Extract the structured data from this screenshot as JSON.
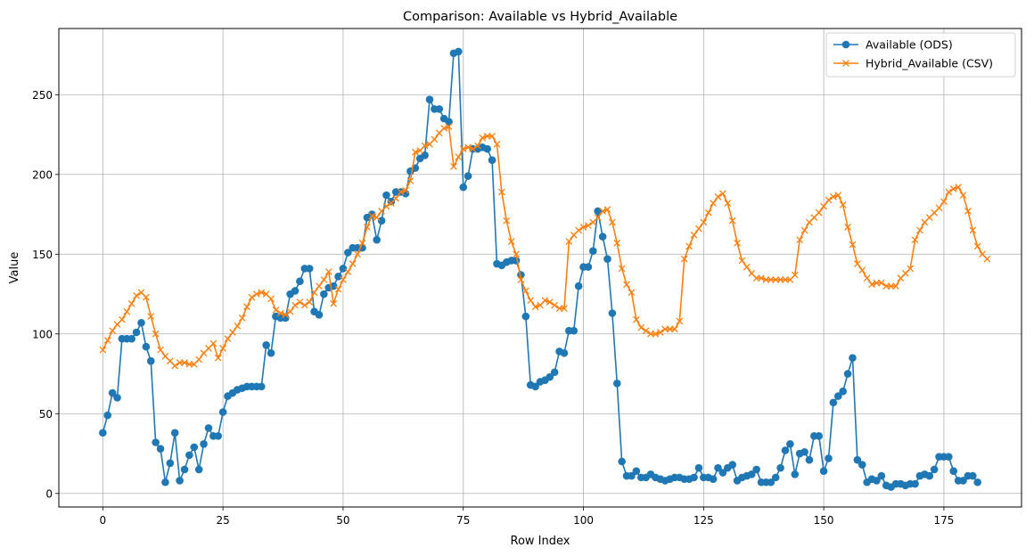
{
  "chart_data": {
    "type": "line",
    "title": "Comparison: Available vs Hybrid_Available",
    "xlabel": "Row Index",
    "ylabel": "Value",
    "xlim": [
      -9.15,
      191.15
    ],
    "ylim": [
      -8.5,
      291.5
    ],
    "xticks": [
      0,
      25,
      50,
      75,
      100,
      125,
      150,
      175
    ],
    "yticks": [
      0,
      50,
      100,
      150,
      200,
      250
    ],
    "grid": true,
    "legend_position": "top-right",
    "series": [
      {
        "name": "Available (ODS)",
        "color": "#1f77b4",
        "marker": "circle",
        "values": [
          38,
          49,
          63,
          60,
          97,
          97,
          97,
          101,
          107,
          92,
          83,
          32,
          28,
          7,
          19,
          38,
          8,
          15,
          24,
          29,
          15,
          31,
          41,
          36,
          36,
          51,
          61,
          63,
          65,
          66,
          67,
          67,
          67,
          67,
          93,
          88,
          111,
          110,
          110,
          125,
          127,
          133,
          141,
          141,
          114,
          112,
          125,
          129,
          130,
          136,
          141,
          151,
          154,
          154,
          154,
          173,
          175,
          159,
          171,
          187,
          183,
          189,
          189,
          188,
          202,
          204,
          210,
          212,
          247,
          241,
          241,
          235,
          233,
          276,
          277,
          192,
          199,
          216,
          216,
          217,
          216,
          209,
          144,
          143,
          145,
          146,
          146,
          137,
          111,
          68,
          67,
          70,
          71,
          73,
          76,
          89,
          88,
          102,
          102,
          130,
          142,
          142,
          152,
          177,
          161,
          147,
          113,
          69,
          20,
          11,
          11,
          14,
          10,
          10,
          12,
          10,
          9,
          8,
          9,
          10,
          10,
          9,
          9,
          10,
          16,
          10,
          10,
          9,
          16,
          13,
          16,
          18,
          8,
          10,
          11,
          12,
          15,
          7,
          7,
          7,
          10,
          16,
          27,
          31,
          12,
          25,
          26,
          21,
          36,
          36,
          14,
          22,
          57,
          61,
          64,
          75,
          85,
          21,
          18,
          7,
          9,
          8,
          11,
          5,
          4,
          6,
          6,
          5,
          6,
          6,
          11,
          12,
          11,
          15,
          23,
          23,
          23,
          14,
          8,
          8,
          11,
          11,
          7
        ]
      },
      {
        "name": "Hybrid_Available (CSV)",
        "color": "#ff7f0e",
        "marker": "x",
        "values": [
          90,
          96,
          102,
          106,
          109,
          114,
          119,
          124,
          126,
          123,
          111,
          100,
          90,
          86,
          83,
          80,
          82,
          82,
          81,
          81,
          84,
          88,
          91,
          94,
          85,
          91,
          97,
          101,
          105,
          110,
          117,
          123,
          125,
          126,
          125,
          122,
          115,
          113,
          112,
          114,
          118,
          120,
          118,
          120,
          126,
          130,
          134,
          139,
          119,
          128,
          134,
          139,
          144,
          150,
          157,
          167,
          174,
          173,
          177,
          180,
          182,
          185,
          189,
          190,
          196,
          214,
          215,
          218,
          219,
          222,
          226,
          229,
          230,
          205,
          211,
          216,
          217,
          216,
          218,
          223,
          224,
          224,
          219,
          189,
          171,
          158,
          150,
          134,
          127,
          121,
          117,
          118,
          121,
          120,
          118,
          116,
          116,
          158,
          162,
          165,
          167,
          168,
          170,
          173,
          177,
          178,
          170,
          157,
          141,
          131,
          126,
          109,
          104,
          102,
          100,
          100,
          101,
          103,
          103,
          103,
          108,
          147,
          155,
          162,
          166,
          170,
          176,
          182,
          186,
          188,
          182,
          171,
          157,
          146,
          142,
          138,
          135,
          135,
          134,
          134,
          134,
          134,
          134,
          134,
          137,
          159,
          165,
          170,
          173,
          176,
          180,
          184,
          186,
          187,
          181,
          167,
          156,
          144,
          140,
          135,
          131,
          132,
          132,
          130,
          130,
          130,
          135,
          138,
          141,
          159,
          165,
          170,
          173,
          176,
          179,
          183,
          189,
          191,
          192,
          187,
          177,
          165,
          155,
          150,
          147
        ]
      }
    ]
  }
}
